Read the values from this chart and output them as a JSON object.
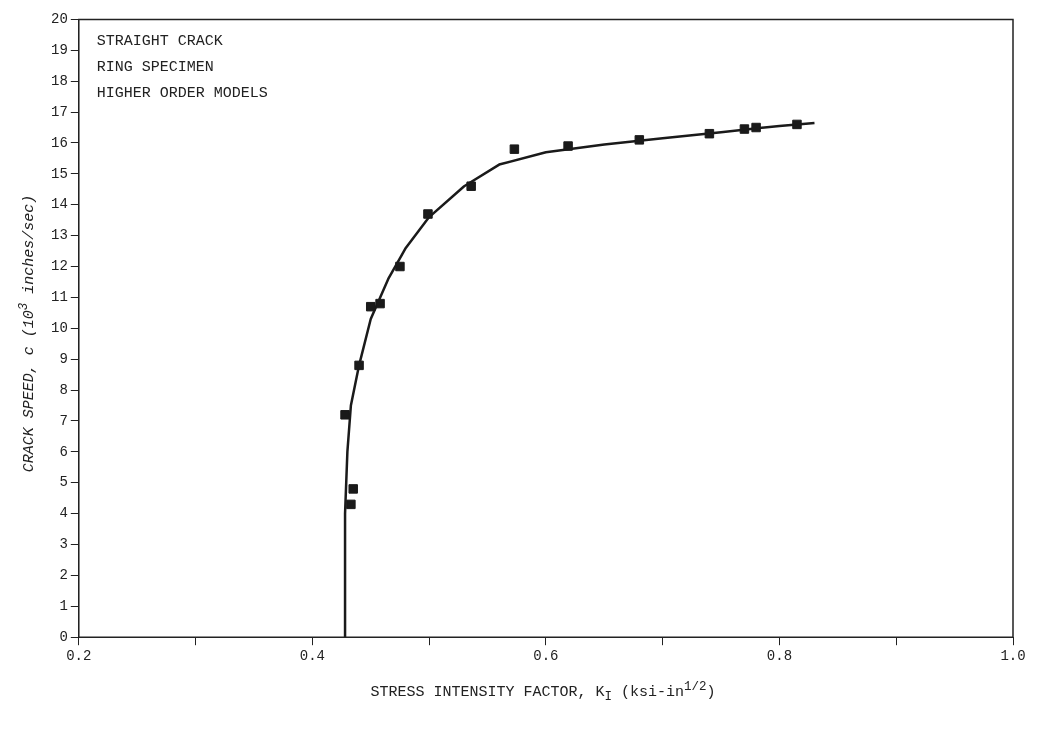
{
  "chart_data": {
    "type": "scatter",
    "xlabel": "STRESS INTENSITY FACTOR, K$_{I}$  (ksi-in$^{1/2}$)",
    "ylabel": "CRACK SPEED, c  (10$^{3}$ inches/sec)",
    "annotations": [
      "STRAIGHT CRACK",
      "RING SPECIMEN",
      "HIGHER ORDER MODELS"
    ],
    "xlim": [
      0.2,
      1.0
    ],
    "xticks": [
      0.2,
      {
        "value": 0.3,
        "label": null
      },
      0.4,
      {
        "value": 0.5,
        "label": null
      },
      0.6,
      {
        "value": 0.7,
        "label": null
      },
      0.8,
      {
        "value": 0.9,
        "label": null
      },
      {
        "value": 1.0,
        "label": "1.0"
      }
    ],
    "ylim": [
      0,
      20
    ],
    "yticks": [
      0,
      1,
      2,
      3,
      4,
      5,
      6,
      7,
      8,
      9,
      10,
      11,
      12,
      13,
      14,
      15,
      16,
      17,
      18,
      19,
      20
    ],
    "grid": false,
    "legend": false,
    "series": [
      {
        "type": "scatter",
        "color": "#1a1a1a",
        "marker": "square",
        "x": [
          0.428,
          0.433,
          0.435,
          0.44,
          0.45,
          0.458,
          0.475,
          0.499,
          0.536,
          0.573,
          0.619,
          0.68,
          0.74,
          0.77,
          0.78,
          0.815
        ],
        "values": [
          7.2,
          4.3,
          4.8,
          8.8,
          10.7,
          10.8,
          12.0,
          13.7,
          14.6,
          15.8,
          15.9,
          16.1,
          16.3,
          16.45,
          16.5,
          16.6
        ]
      },
      {
        "type": "line",
        "color": "#1a1a1a",
        "marker": "none",
        "line_style": "solid",
        "x": [
          0.428,
          0.428,
          0.43,
          0.433,
          0.44,
          0.45,
          0.465,
          0.48,
          0.5,
          0.53,
          0.56,
          0.6,
          0.65,
          0.7,
          0.75,
          0.8,
          0.83
        ],
        "values": [
          0,
          4,
          6,
          7.5,
          8.8,
          10.3,
          11.6,
          12.6,
          13.6,
          14.6,
          15.3,
          15.7,
          15.95,
          16.15,
          16.35,
          16.55,
          16.65
        ]
      }
    ]
  }
}
